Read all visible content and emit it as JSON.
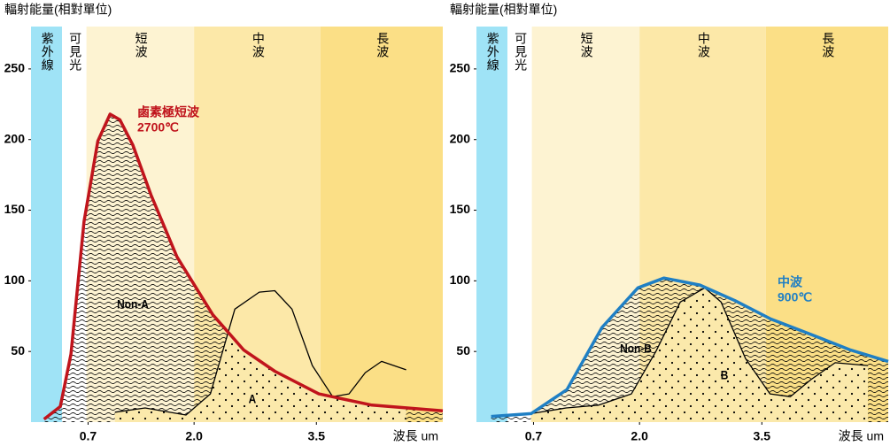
{
  "chart_data": [
    {
      "type": "line",
      "title": "輻射能量(相對單位)",
      "x_label": "波長 um",
      "xlim": [
        0,
        5.05
      ],
      "ylim": [
        0,
        280
      ],
      "xticks": [
        0.7,
        {
          "value": 2,
          "label": "2.0"
        },
        3.5
      ],
      "yticks": [
        50,
        100,
        150,
        200,
        250
      ],
      "bands": [
        {
          "label": "紫外線",
          "from": 0,
          "to": 0.38,
          "color": "#9fe3f6"
        },
        {
          "label": "可見光",
          "from": 0.38,
          "to": 0.68,
          "color": "#ffffff"
        },
        {
          "label": "短波",
          "from": 0.68,
          "to": 2.0,
          "color": "#fdf3d2"
        },
        {
          "label": "中波",
          "from": 2.0,
          "to": 3.55,
          "color": "#fce8a8"
        },
        {
          "label": "長波",
          "from": 3.55,
          "to": 5.05,
          "color": "#fbdf86"
        }
      ],
      "series": [
        {
          "name": "鹵素極短波",
          "temperature": "2700℃",
          "color": "#c0141c",
          "x": [
            0.16,
            0.36,
            0.49,
            0.65,
            0.82,
            0.97,
            1.09,
            1.25,
            1.47,
            1.79,
            2.23,
            2.61,
            2.99,
            3.53,
            4.18,
            5.05
          ],
          "values": [
            2,
            11,
            48,
            142,
            199,
            218,
            214,
            196,
            161,
            117,
            76,
            51,
            36,
            20,
            12,
            8
          ]
        },
        {
          "color": "#000000",
          "x": [
            1.03,
            1.4,
            1.9,
            2.2,
            2.5,
            2.8,
            2.99,
            3.2,
            3.45,
            3.7,
            3.9,
            4.1,
            4.3,
            4.6
          ],
          "values": [
            7,
            10,
            5,
            20,
            80,
            92,
            93,
            80,
            40,
            18,
            20,
            35,
            43,
            37
          ]
        }
      ],
      "annotations": [
        "Non-A",
        "A"
      ]
    },
    {
      "type": "line",
      "title": "輻射能量(相對單位)",
      "x_label": "波長 um",
      "xlim": [
        0,
        5.05
      ],
      "ylim": [
        0,
        280
      ],
      "xticks": [
        0.7,
        {
          "value": 2,
          "label": "2.0"
        },
        3.5
      ],
      "yticks": [
        50,
        100,
        150,
        200,
        250
      ],
      "bands": [
        {
          "label": "紫外線",
          "from": 0,
          "to": 0.38,
          "color": "#9fe3f6"
        },
        {
          "label": "可見光",
          "from": 0.38,
          "to": 0.68,
          "color": "#ffffff"
        },
        {
          "label": "短波",
          "from": 0.68,
          "to": 2.0,
          "color": "#fdf3d2"
        },
        {
          "label": "中波",
          "from": 2.0,
          "to": 3.55,
          "color": "#fce8a8"
        },
        {
          "label": "長波",
          "from": 3.55,
          "to": 5.05,
          "color": "#fbdf86"
        }
      ],
      "series": [
        {
          "name": "中波",
          "temperature": "900℃",
          "color": "#1f7fc4",
          "x": [
            0.18,
            0.67,
            1.11,
            1.54,
            1.98,
            2.3,
            2.74,
            3.17,
            3.61,
            4.15,
            4.59,
            5.05
          ],
          "values": [
            4,
            6,
            23,
            67,
            95,
            102,
            97,
            86,
            73,
            61,
            51,
            43
          ]
        },
        {
          "color": "#000000",
          "x": [
            0.67,
            1.1,
            1.5,
            1.9,
            2.2,
            2.5,
            2.8,
            3.0,
            3.3,
            3.6,
            3.85,
            4.1,
            4.4,
            4.8
          ],
          "values": [
            6,
            10,
            12,
            20,
            50,
            85,
            95,
            85,
            45,
            20,
            18,
            30,
            42,
            40
          ]
        }
      ],
      "annotations": [
        "Non-B",
        "B"
      ]
    }
  ]
}
